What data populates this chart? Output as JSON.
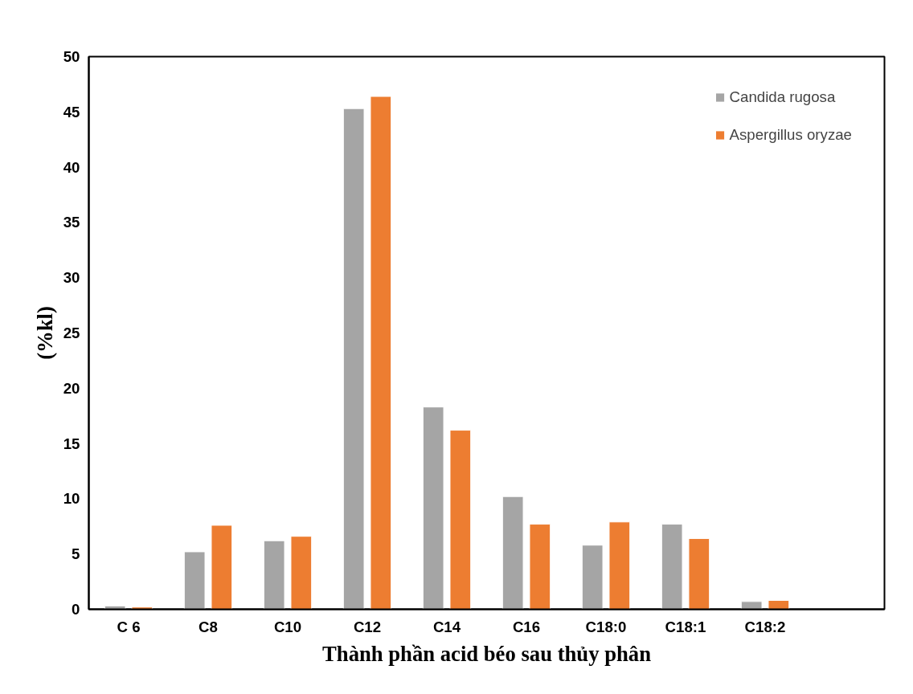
{
  "chart_data": {
    "type": "bar",
    "xlabel": "Thành phần acid béo sau thủy phân",
    "ylabel": "(%kl)",
    "categories": [
      "C 6",
      "C8",
      "C10",
      "C12",
      "C14",
      "C16",
      "C18:0",
      "C18:1",
      "C18:2",
      null
    ],
    "series": [
      {
        "name": "Candida rugosa",
        "color": "#a5a5a5",
        "values": [
          0.3,
          5.2,
          6.2,
          45.3,
          18.3,
          10.2,
          5.8,
          7.7,
          0.7,
          null
        ]
      },
      {
        "name": "Aspergillus oryzae",
        "color": "#ed7d31",
        "values": [
          0.2,
          7.6,
          6.6,
          46.4,
          16.2,
          7.7,
          7.9,
          6.4,
          0.8,
          null
        ]
      }
    ],
    "ylim": [
      0,
      50
    ],
    "yticks": [
      0,
      5,
      10,
      15,
      20,
      25,
      30,
      35,
      40,
      45,
      50
    ],
    "grid": false,
    "legend": "top right"
  }
}
